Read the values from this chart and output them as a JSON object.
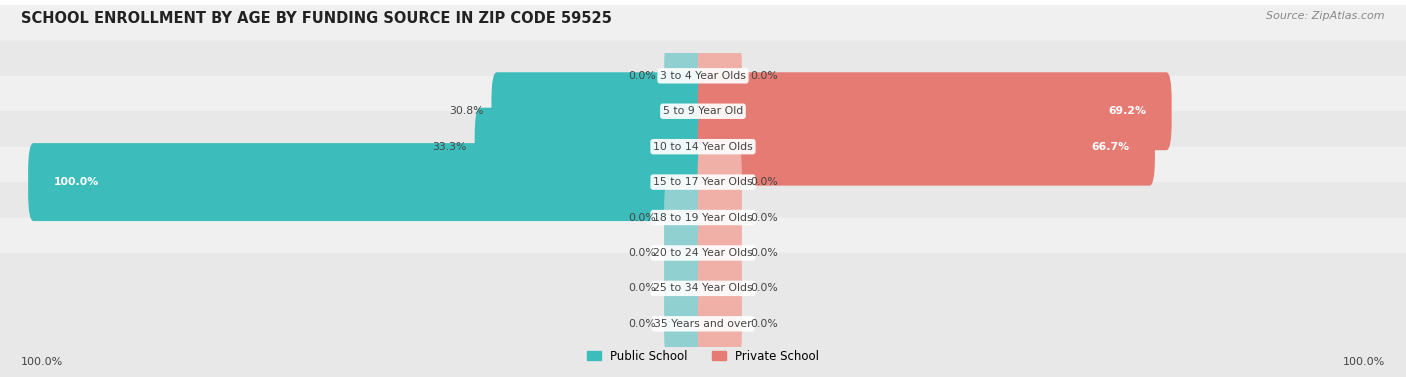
{
  "title": "SCHOOL ENROLLMENT BY AGE BY FUNDING SOURCE IN ZIP CODE 59525",
  "source": "Source: ZipAtlas.com",
  "categories": [
    "3 to 4 Year Olds",
    "5 to 9 Year Old",
    "10 to 14 Year Olds",
    "15 to 17 Year Olds",
    "18 to 19 Year Olds",
    "20 to 24 Year Olds",
    "25 to 34 Year Olds",
    "35 Years and over"
  ],
  "public_values": [
    0.0,
    30.8,
    33.3,
    100.0,
    0.0,
    0.0,
    0.0,
    0.0
  ],
  "private_values": [
    0.0,
    69.2,
    66.7,
    0.0,
    0.0,
    0.0,
    0.0,
    0.0
  ],
  "public_color": "#3DBCBC",
  "private_color": "#E57B72",
  "public_color_light": "#90D0D0",
  "private_color_light": "#F0B0A8",
  "row_bg_colors": [
    "#F0F0F0",
    "#E8E8E8"
  ],
  "label_color": "#444444",
  "title_color": "#222222",
  "legend_public": "Public School",
  "legend_private": "Private School",
  "x_left_label": "100.0%",
  "x_right_label": "100.0%",
  "stub_size": 5.0,
  "figsize": [
    14.06,
    3.77
  ],
  "dpi": 100
}
